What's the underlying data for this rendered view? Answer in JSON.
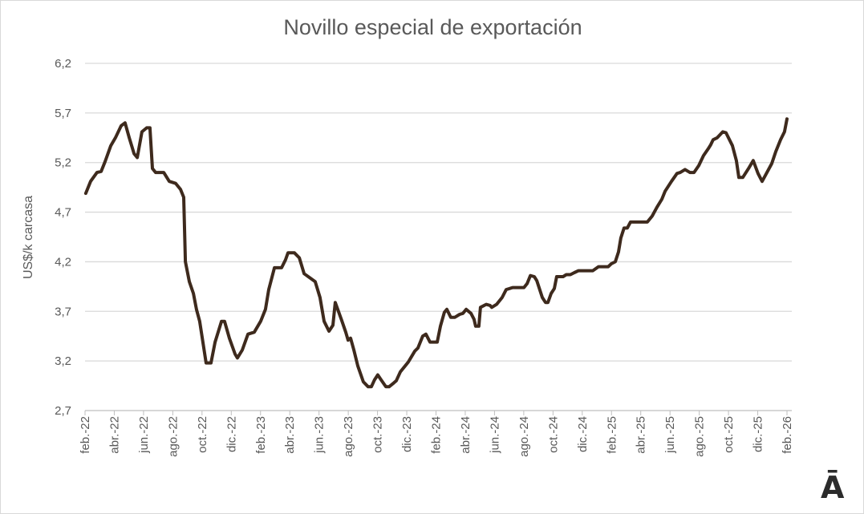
{
  "chart_data": {
    "type": "line",
    "title": "Novillo especial de exportación",
    "xlabel": "",
    "ylabel": "US$/k carcasa",
    "ylim": [
      2.7,
      6.2
    ],
    "yticks": [
      "2,7",
      "3,2",
      "3,7",
      "4,2",
      "4,7",
      "5,2",
      "5,7",
      "6,2"
    ],
    "ytick_values": [
      2.7,
      3.2,
      3.7,
      4.2,
      4.7,
      5.2,
      5.7,
      6.2
    ],
    "x_unit": "months since feb.-22",
    "xlim": [
      0,
      48
    ],
    "xticks": [
      "feb.-22",
      "abr.-22",
      "jun.-22",
      "ago.-22",
      "oct.-22",
      "dic.-22",
      "feb.-23",
      "abr.-23",
      "jun.-23",
      "ago.-23",
      "oct.-23",
      "dic.-23",
      "feb.-24",
      "abr.-24",
      "jun.-24",
      "ago.-24",
      "oct.-24",
      "dic.-24",
      "feb.-25",
      "abr.-25",
      "jun.-25",
      "ago.-25",
      "oct.-25",
      "dic.-25",
      "feb.-26"
    ],
    "grid": true,
    "legend": "none",
    "line_color": "#3e2a1d",
    "series": [
      {
        "name": "Novillo especial de exportación",
        "points": [
          [
            0.05,
            4.89
          ],
          [
            0.38,
            5.01
          ],
          [
            0.82,
            5.1
          ],
          [
            1.1,
            5.11
          ],
          [
            1.37,
            5.21
          ],
          [
            1.76,
            5.37
          ],
          [
            2.08,
            5.45
          ],
          [
            2.47,
            5.57
          ],
          [
            2.74,
            5.6
          ],
          [
            3.02,
            5.45
          ],
          [
            3.35,
            5.29
          ],
          [
            3.57,
            5.25
          ],
          [
            3.89,
            5.51
          ],
          [
            4.22,
            5.55
          ],
          [
            4.44,
            5.55
          ],
          [
            4.61,
            5.14
          ],
          [
            4.83,
            5.1
          ],
          [
            5.38,
            5.1
          ],
          [
            5.76,
            5.01
          ],
          [
            6.2,
            4.99
          ],
          [
            6.53,
            4.93
          ],
          [
            6.75,
            4.85
          ],
          [
            6.86,
            4.2
          ],
          [
            7.13,
            4.0
          ],
          [
            7.41,
            3.88
          ],
          [
            7.62,
            3.72
          ],
          [
            7.84,
            3.6
          ],
          [
            8.06,
            3.39
          ],
          [
            8.28,
            3.18
          ],
          [
            8.61,
            3.18
          ],
          [
            8.89,
            3.39
          ],
          [
            9.33,
            3.6
          ],
          [
            9.54,
            3.6
          ],
          [
            9.87,
            3.43
          ],
          [
            10.26,
            3.27
          ],
          [
            10.42,
            3.23
          ],
          [
            10.75,
            3.31
          ],
          [
            11.14,
            3.47
          ],
          [
            11.57,
            3.49
          ],
          [
            12.01,
            3.6
          ],
          [
            12.34,
            3.72
          ],
          [
            12.56,
            3.92
          ],
          [
            12.95,
            4.14
          ],
          [
            13.44,
            4.14
          ],
          [
            13.71,
            4.22
          ],
          [
            13.88,
            4.29
          ],
          [
            14.32,
            4.29
          ],
          [
            14.65,
            4.24
          ],
          [
            14.98,
            4.08
          ],
          [
            15.36,
            4.04
          ],
          [
            15.74,
            4.0
          ],
          [
            16.07,
            3.84
          ],
          [
            16.35,
            3.6
          ],
          [
            16.68,
            3.5
          ],
          [
            16.95,
            3.56
          ],
          [
            17.11,
            3.79
          ],
          [
            17.33,
            3.7
          ],
          [
            17.55,
            3.61
          ],
          [
            17.83,
            3.49
          ],
          [
            17.99,
            3.41
          ],
          [
            18.16,
            3.43
          ],
          [
            18.38,
            3.31
          ],
          [
            18.65,
            3.15
          ],
          [
            19.03,
            2.99
          ],
          [
            19.36,
            2.94
          ],
          [
            19.58,
            2.94
          ],
          [
            19.8,
            3.01
          ],
          [
            20.02,
            3.06
          ],
          [
            20.24,
            3.01
          ],
          [
            20.57,
            2.94
          ],
          [
            20.79,
            2.94
          ],
          [
            21.12,
            2.98
          ],
          [
            21.28,
            3.0
          ],
          [
            21.56,
            3.09
          ],
          [
            22.11,
            3.19
          ],
          [
            22.55,
            3.3
          ],
          [
            22.76,
            3.33
          ],
          [
            23.09,
            3.45
          ],
          [
            23.31,
            3.47
          ],
          [
            23.59,
            3.39
          ],
          [
            23.86,
            3.39
          ],
          [
            24.08,
            3.39
          ],
          [
            24.3,
            3.55
          ],
          [
            24.57,
            3.69
          ],
          [
            24.74,
            3.72
          ],
          [
            25.01,
            3.64
          ],
          [
            25.29,
            3.64
          ],
          [
            25.62,
            3.67
          ],
          [
            25.84,
            3.68
          ],
          [
            26.06,
            3.72
          ],
          [
            26.39,
            3.68
          ],
          [
            26.6,
            3.62
          ],
          [
            26.71,
            3.55
          ],
          [
            26.93,
            3.55
          ],
          [
            27.04,
            3.74
          ],
          [
            27.43,
            3.77
          ],
          [
            27.7,
            3.76
          ],
          [
            27.81,
            3.74
          ],
          [
            28.14,
            3.77
          ],
          [
            28.52,
            3.84
          ],
          [
            28.8,
            3.92
          ],
          [
            29.24,
            3.94
          ],
          [
            30.01,
            3.94
          ],
          [
            30.23,
            3.98
          ],
          [
            30.45,
            4.06
          ],
          [
            30.72,
            4.05
          ],
          [
            30.89,
            4.01
          ],
          [
            31.27,
            3.84
          ],
          [
            31.49,
            3.79
          ],
          [
            31.65,
            3.79
          ],
          [
            31.87,
            3.88
          ],
          [
            32.09,
            3.93
          ],
          [
            32.25,
            4.05
          ],
          [
            32.69,
            4.05
          ],
          [
            32.91,
            4.07
          ],
          [
            33.19,
            4.07
          ],
          [
            33.46,
            4.09
          ],
          [
            33.74,
            4.11
          ],
          [
            34.72,
            4.11
          ],
          [
            35.11,
            4.15
          ],
          [
            35.77,
            4.15
          ],
          [
            35.99,
            4.18
          ],
          [
            36.26,
            4.2
          ],
          [
            36.48,
            4.3
          ],
          [
            36.64,
            4.44
          ],
          [
            36.86,
            4.54
          ],
          [
            37.08,
            4.54
          ],
          [
            37.3,
            4.6
          ],
          [
            38.45,
            4.6
          ],
          [
            38.78,
            4.66
          ],
          [
            39.11,
            4.75
          ],
          [
            39.44,
            4.83
          ],
          [
            39.66,
            4.91
          ],
          [
            40.1,
            5.01
          ],
          [
            40.48,
            5.09
          ],
          [
            40.7,
            5.1
          ],
          [
            41.03,
            5.13
          ],
          [
            41.36,
            5.1
          ],
          [
            41.64,
            5.1
          ],
          [
            41.97,
            5.17
          ],
          [
            42.29,
            5.27
          ],
          [
            42.62,
            5.34
          ],
          [
            42.79,
            5.38
          ],
          [
            42.95,
            5.43
          ],
          [
            43.23,
            5.45
          ],
          [
            43.61,
            5.51
          ],
          [
            43.83,
            5.5
          ],
          [
            44.27,
            5.37
          ],
          [
            44.54,
            5.22
          ],
          [
            44.71,
            5.05
          ],
          [
            44.98,
            5.05
          ],
          [
            45.37,
            5.14
          ],
          [
            45.69,
            5.22
          ],
          [
            46.02,
            5.09
          ],
          [
            46.3,
            5.01
          ],
          [
            46.52,
            5.07
          ],
          [
            46.96,
            5.19
          ],
          [
            47.23,
            5.31
          ],
          [
            47.56,
            5.43
          ],
          [
            47.83,
            5.51
          ],
          [
            48.0,
            5.64
          ]
        ]
      }
    ]
  },
  "logo_text": "Ā"
}
